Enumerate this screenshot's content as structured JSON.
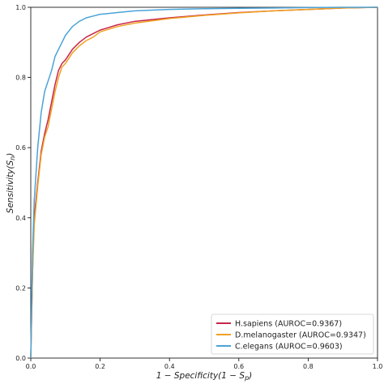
{
  "chart_data": {
    "type": "line",
    "xlabel": "1 − Specificity(1 − S",
    "xlabel_sub": "p",
    "xlabel_end": ")",
    "ylabel": "Sensitivity(S",
    "ylabel_sub": "n",
    "ylabel_end": ")",
    "xlim": [
      0,
      1
    ],
    "ylim": [
      0,
      1
    ],
    "xticks": [
      "0.0",
      "0.2",
      "0.4",
      "0.6",
      "0.8",
      "1.0"
    ],
    "yticks": [
      "0.0",
      "0.2",
      "0.4",
      "0.6",
      "0.8",
      "1.0"
    ],
    "grid": false,
    "legend_position": "bottom-right",
    "series": [
      {
        "name": "H.sapiens (AUROC=0.9367)",
        "color": "#c8264a",
        "x": [
          0,
          0.005,
          0.01,
          0.02,
          0.03,
          0.04,
          0.05,
          0.06,
          0.07,
          0.08,
          0.09,
          0.1,
          0.12,
          0.14,
          0.16,
          0.18,
          0.2,
          0.25,
          0.3,
          0.4,
          0.5,
          0.6,
          0.7,
          0.8,
          0.9,
          1.0
        ],
        "y": [
          0,
          0.25,
          0.4,
          0.5,
          0.59,
          0.64,
          0.68,
          0.73,
          0.78,
          0.82,
          0.84,
          0.85,
          0.88,
          0.9,
          0.915,
          0.925,
          0.935,
          0.95,
          0.96,
          0.97,
          0.978,
          0.985,
          0.99,
          0.994,
          0.998,
          1.0
        ]
      },
      {
        "name": "D.melanogaster (AUROC=0.9347)",
        "color": "#f0a020",
        "x": [
          0,
          0.005,
          0.01,
          0.02,
          0.03,
          0.04,
          0.05,
          0.06,
          0.07,
          0.08,
          0.09,
          0.1,
          0.12,
          0.14,
          0.16,
          0.18,
          0.2,
          0.25,
          0.3,
          0.4,
          0.5,
          0.6,
          0.7,
          0.8,
          0.9,
          1.0
        ],
        "y": [
          0,
          0.24,
          0.38,
          0.49,
          0.58,
          0.63,
          0.66,
          0.71,
          0.76,
          0.8,
          0.83,
          0.84,
          0.87,
          0.89,
          0.905,
          0.915,
          0.93,
          0.945,
          0.955,
          0.968,
          0.977,
          0.984,
          0.99,
          0.994,
          0.998,
          1.0
        ]
      },
      {
        "name": "C.elegans (AUROC=0.9603)",
        "color": "#4aa3d8",
        "x": [
          0,
          0.005,
          0.01,
          0.02,
          0.03,
          0.04,
          0.05,
          0.06,
          0.07,
          0.08,
          0.09,
          0.1,
          0.12,
          0.14,
          0.16,
          0.18,
          0.2,
          0.25,
          0.3,
          0.4,
          0.5,
          0.6,
          0.7,
          0.8,
          0.9,
          1.0
        ],
        "y": [
          0,
          0.3,
          0.45,
          0.6,
          0.7,
          0.76,
          0.79,
          0.82,
          0.86,
          0.88,
          0.9,
          0.92,
          0.945,
          0.96,
          0.97,
          0.975,
          0.98,
          0.985,
          0.99,
          0.994,
          0.996,
          0.997,
          0.998,
          0.999,
          1.0,
          1.0
        ]
      }
    ]
  }
}
